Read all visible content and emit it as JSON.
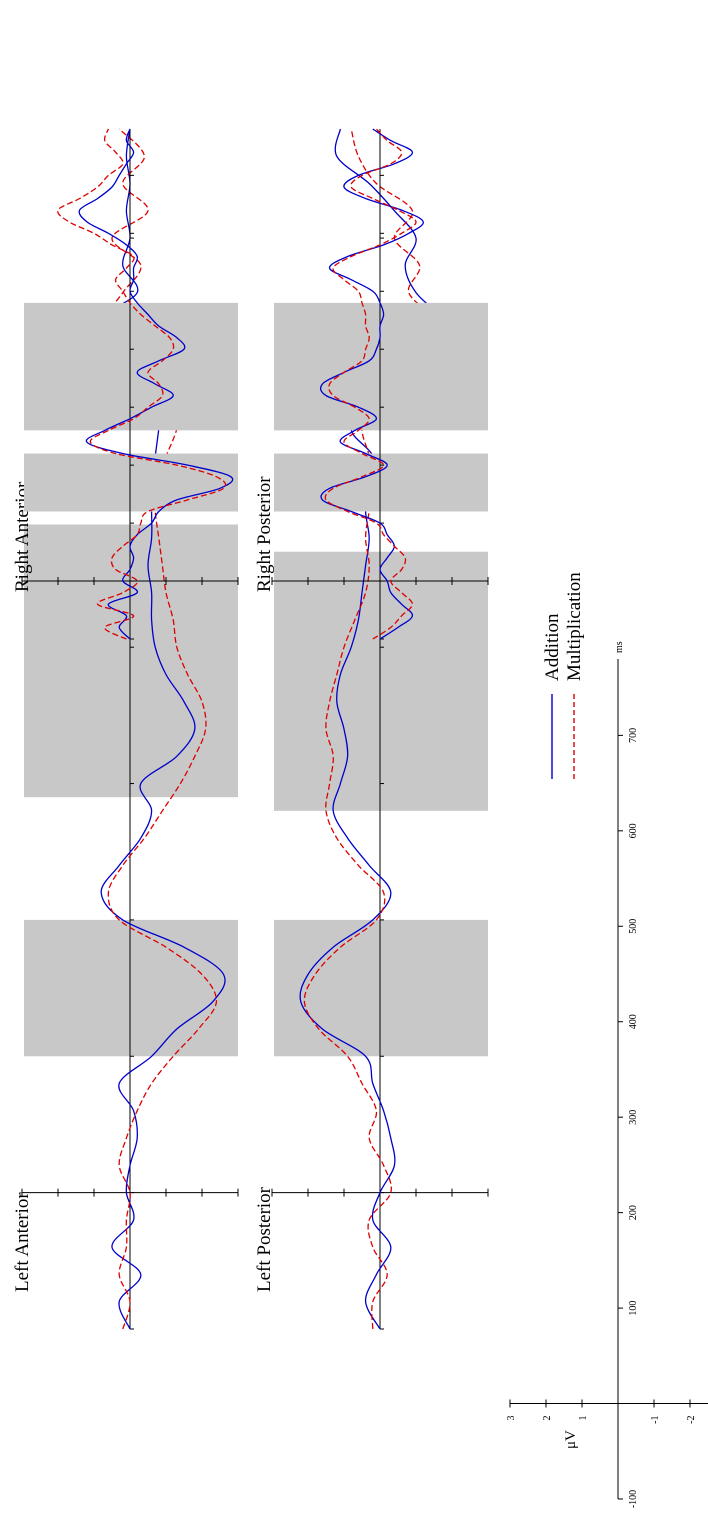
{
  "chart_data": {
    "type": "line",
    "xlabel": "ms",
    "ylabel": "μV",
    "x_ticks": [
      "-100",
      "100",
      "200",
      "300",
      "400",
      "500",
      "600",
      "700"
    ],
    "y_ticks": [
      "3",
      "2",
      "1",
      "-1",
      "-2",
      "-3"
    ],
    "xlim": [
      -100,
      780
    ],
    "ylim": [
      -3,
      3
    ],
    "legend_position": "bottom-center",
    "series": [
      {
        "name": "Addition",
        "color": "#0000cc",
        "dash": "solid"
      },
      {
        "name": "Multiplication",
        "color": "#dd0000",
        "dash": "dashed"
      }
    ],
    "panels": [
      {
        "title": "Left Anterior",
        "windows": [
          [
            100,
            200
          ],
          [
            290,
            490
          ]
        ],
        "x": [
          -100,
          -80,
          -60,
          -40,
          -20,
          0,
          20,
          40,
          60,
          80,
          100,
          120,
          140,
          160,
          180,
          200,
          220,
          240,
          260,
          280,
          300,
          320,
          340,
          360,
          380,
          400,
          420,
          440,
          460,
          480,
          500,
          520,
          540,
          560,
          580,
          600,
          620,
          640,
          660,
          680,
          700,
          720,
          740,
          760,
          780
        ],
        "Addition": [
          0.0,
          0.3,
          -0.3,
          0.5,
          -0.1,
          0.1,
          0.0,
          -0.2,
          -0.1,
          0.3,
          -0.6,
          -1.3,
          -2.3,
          -2.6,
          -1.5,
          0.2,
          0.8,
          0.3,
          -0.3,
          -0.6,
          -0.3,
          -1.3,
          -1.8,
          -1.5,
          -1.0,
          -0.7,
          -0.6,
          -0.6,
          -0.5,
          -0.6,
          -0.6,
          -0.6,
          -0.7,
          -0.8,
          -0.9,
          -0.4,
          0.6,
          0.9,
          -0.2,
          0.2,
          0.0,
          0.1,
          0.0,
          0.1,
          0.0
        ],
        "Multiplication": [
          0.2,
          0.0,
          0.3,
          0.1,
          0.1,
          0.0,
          0.3,
          0.1,
          -0.2,
          -0.6,
          -1.2,
          -1.9,
          -2.4,
          -2.0,
          -1.0,
          0.3,
          0.6,
          0.2,
          -0.4,
          -0.9,
          -1.4,
          -1.8,
          -2.1,
          -2.0,
          -1.6,
          -1.3,
          -1.2,
          -1.0,
          -0.9,
          -0.8,
          -0.7,
          -0.7,
          -1.0,
          -1.3,
          -1.4,
          -0.8,
          0.4,
          0.7,
          0.2,
          -0.3,
          0.5,
          -0.5,
          0.2,
          -0.4,
          0.3
        ]
      },
      {
        "title": "Left Posterior",
        "windows": [
          [
            100,
            200
          ],
          [
            280,
            470
          ]
        ],
        "x": [
          -100,
          -80,
          -60,
          -40,
          -20,
          0,
          20,
          40,
          60,
          80,
          100,
          120,
          140,
          160,
          180,
          200,
          220,
          240,
          260,
          280,
          300,
          320,
          340,
          360,
          380,
          400,
          420,
          440,
          460,
          480,
          500,
          520,
          540,
          560,
          580,
          600,
          620,
          640,
          660,
          680,
          700,
          720,
          740,
          760,
          780
        ],
        "Addition": [
          0.0,
          0.4,
          0.1,
          -0.3,
          0.2,
          0.0,
          -0.4,
          -0.3,
          -0.1,
          0.2,
          0.4,
          1.6,
          2.2,
          2.0,
          1.3,
          0.2,
          -0.3,
          0.3,
          0.9,
          1.3,
          1.1,
          0.9,
          1.0,
          1.2,
          1.1,
          0.8,
          0.6,
          0.5,
          0.4,
          0.3,
          0.4,
          0.3,
          0.2,
          0.8,
          0.2,
          -1.2,
          -2.3,
          -1.8,
          -1.0,
          -0.7,
          -1.0,
          -0.4,
          0.3,
          1.2,
          1.1
        ],
        "Multiplication": [
          0.2,
          0.2,
          -0.2,
          0.2,
          0.3,
          -0.3,
          -0.1,
          0.3,
          0.1,
          0.5,
          0.9,
          1.7,
          2.1,
          1.8,
          1.1,
          0.1,
          -0.1,
          0.6,
          1.2,
          1.5,
          1.4,
          1.3,
          1.5,
          1.4,
          1.2,
          1.0,
          0.7,
          0.4,
          0.3,
          0.4,
          0.3,
          0.2,
          0.3,
          0.5,
          0.3,
          -1.0,
          -2.2,
          -1.6,
          -0.8,
          -1.1,
          -0.4,
          -0.9,
          0.1,
          0.6,
          0.8
        ]
      },
      {
        "title": "Right Anterior",
        "windows": [
          [
            120,
            220
          ],
          [
            260,
            480
          ]
        ],
        "x": [
          -100,
          -80,
          -60,
          -40,
          -20,
          0,
          20,
          40,
          60,
          80,
          100,
          120,
          140,
          160,
          180,
          200,
          220,
          240,
          260,
          280,
          300,
          320,
          340,
          360,
          380,
          400,
          420,
          440,
          460,
          480,
          500,
          520,
          540,
          560,
          580,
          600,
          620,
          640,
          660,
          680,
          700,
          720,
          740,
          760,
          780
        ],
        "Addition": [
          0.0,
          0.3,
          0.1,
          0.6,
          -0.2,
          0.2,
          0.0,
          -0.1,
          0.0,
          -0.2,
          -0.6,
          -0.8,
          -1.3,
          -2.5,
          -2.8,
          -1.6,
          0.2,
          1.2,
          0.7,
          0.0,
          -0.6,
          -1.2,
          -0.7,
          -0.2,
          -0.8,
          -1.5,
          -1.3,
          -0.8,
          -0.5,
          -0.2,
          0.0,
          -0.1,
          -0.1,
          -0.2,
          0.1,
          0.6,
          1.2,
          1.4,
          0.9,
          0.5,
          0.3,
          0.1,
          -0.1,
          0.1,
          0.0
        ],
        "Multiplication": [
          0.1,
          0.7,
          -0.1,
          0.9,
          0.2,
          -0.2,
          0.4,
          0.5,
          0.2,
          -0.2,
          -0.3,
          -0.5,
          -1.6,
          -2.6,
          -2.4,
          -1.3,
          0.4,
          1.1,
          0.6,
          -0.1,
          -0.5,
          -0.9,
          -0.8,
          -0.5,
          -0.9,
          -1.2,
          -1.1,
          -0.7,
          -0.3,
          0.0,
          0.2,
          0.4,
          0.1,
          -0.1,
          0.5,
          1.0,
          1.7,
          2.0,
          1.4,
          0.9,
          0.6,
          0.2,
          0.4,
          0.7,
          0.6
        ]
      },
      {
        "title": "Right Posterior",
        "windows": [
          [
            120,
            220
          ],
          [
            260,
            480
          ]
        ],
        "x": [
          -100,
          -80,
          -60,
          -40,
          -20,
          0,
          20,
          40,
          60,
          80,
          100,
          120,
          140,
          160,
          180,
          200,
          220,
          240,
          260,
          280,
          300,
          320,
          340,
          360,
          380,
          400,
          420,
          440,
          460,
          480,
          500,
          520,
          540,
          560,
          580,
          600,
          620,
          640,
          660,
          680,
          700,
          720,
          740,
          760,
          780
        ],
        "Addition": [
          0.0,
          -0.5,
          -0.9,
          -0.6,
          -0.3,
          -0.2,
          0.0,
          -0.2,
          -0.4,
          -0.2,
          0.0,
          0.8,
          1.6,
          1.4,
          0.4,
          -0.2,
          0.4,
          1.1,
          0.7,
          0.1,
          0.6,
          1.5,
          1.6,
          1.0,
          0.3,
          0.1,
          0.0,
          0.0,
          -0.1,
          0.0,
          0.2,
          0.8,
          1.4,
          0.9,
          -0.1,
          -0.8,
          -1.2,
          -0.6,
          0.4,
          1.0,
          0.6,
          -0.4,
          -0.9,
          -0.3,
          0.2
        ],
        "Multiplication": [
          0.2,
          -0.3,
          -0.6,
          -0.9,
          -0.6,
          -0.3,
          -0.6,
          -0.7,
          -0.4,
          -0.1,
          0.1,
          0.9,
          1.5,
          1.3,
          0.5,
          -0.1,
          0.5,
          1.0,
          0.6,
          0.3,
          0.7,
          1.3,
          1.4,
          1.0,
          0.5,
          0.4,
          0.3,
          0.4,
          0.4,
          0.5,
          0.6,
          1.0,
          1.3,
          0.8,
          0.0,
          -0.6,
          -1.0,
          -0.5,
          0.2,
          0.8,
          0.5,
          -0.3,
          -0.6,
          -0.2,
          0.1
        ]
      }
    ]
  }
}
